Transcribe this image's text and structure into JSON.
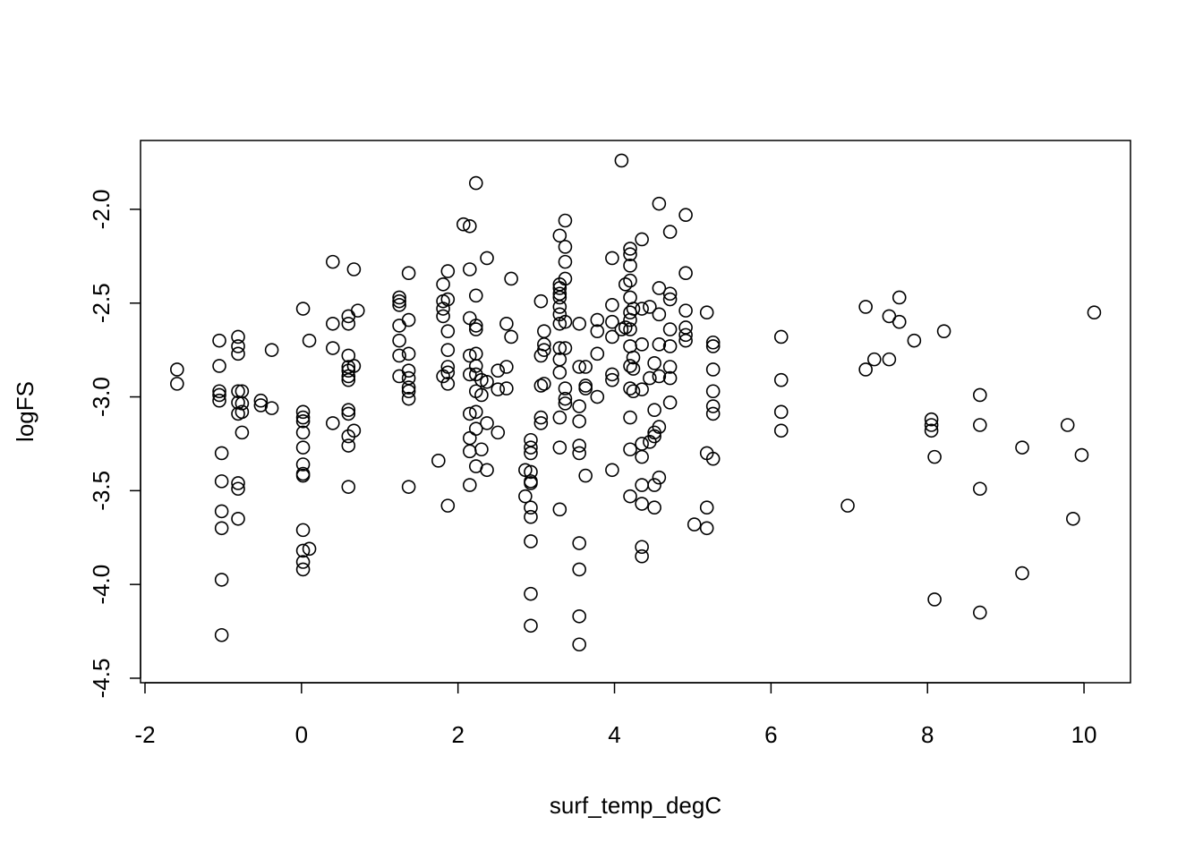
{
  "chart_data": {
    "type": "scatter",
    "x_label": "surf_temp_degC",
    "y_label": "logFS",
    "xlim": [
      -2.057,
      10.594
    ],
    "ylim": [
      -4.524,
      -1.633
    ],
    "xticks": [
      -2,
      0,
      2,
      4,
      6,
      8,
      10
    ],
    "yticks": [
      {
        "value": -2,
        "label": "-2.0"
      },
      -2.5,
      {
        "value": -3,
        "label": "-3.0"
      },
      -3.5,
      {
        "value": -4,
        "label": "-4.0"
      },
      -4.5
    ],
    "color": "#000000",
    "x": [
      -1.59,
      -1.59,
      -1.05,
      -1.05,
      -1.05,
      -1.05,
      -1.05,
      -1.02,
      -1.02,
      -1.02,
      -1.02,
      -1.02,
      -1.02,
      -0.81,
      -0.81,
      -0.81,
      -0.81,
      -0.81,
      -0.81,
      -0.81,
      -0.81,
      -0.81,
      -0.76,
      -0.76,
      -0.76,
      -0.76,
      -0.52,
      -0.52,
      -0.38,
      -0.38,
      0.02,
      0.02,
      0.02,
      0.02,
      0.02,
      0.02,
      0.02,
      0.02,
      0.02,
      0.02,
      0.02,
      0.02,
      0.02,
      0.1,
      0.1,
      0.4,
      0.4,
      0.4,
      0.4,
      0.6,
      0.6,
      0.6,
      0.6,
      0.6,
      0.6,
      0.6,
      0.6,
      0.6,
      0.6,
      0.6,
      0.6,
      0.67,
      0.67,
      0.67,
      0.72,
      1.25,
      1.25,
      1.25,
      1.25,
      1.25,
      1.25,
      1.25,
      1.37,
      1.37,
      1.37,
      1.37,
      1.37,
      1.37,
      1.37,
      1.37,
      1.37,
      1.75,
      1.81,
      1.81,
      1.81,
      1.81,
      1.81,
      1.87,
      1.87,
      1.87,
      1.87,
      1.87,
      1.87,
      1.87,
      1.87,
      2.07,
      2.15,
      2.15,
      2.15,
      2.15,
      2.15,
      2.15,
      2.15,
      2.15,
      2.15,
      2.23,
      2.23,
      2.23,
      2.23,
      2.23,
      2.23,
      2.23,
      2.23,
      2.23,
      2.23,
      2.23,
      2.3,
      2.3,
      2.3,
      2.37,
      2.37,
      2.37,
      2.37,
      2.51,
      2.51,
      2.51,
      2.62,
      2.62,
      2.62,
      2.68,
      2.68,
      2.86,
      2.86,
      2.93,
      2.93,
      2.93,
      2.93,
      2.93,
      2.93,
      2.93,
      2.93,
      2.93,
      2.93,
      2.93,
      3.06,
      3.06,
      3.06,
      3.06,
      3.06,
      3.1,
      3.1,
      3.1,
      3.1,
      3.3,
      3.3,
      3.3,
      3.3,
      3.3,
      3.3,
      3.3,
      3.3,
      3.3,
      3.3,
      3.3,
      3.3,
      3.3,
      3.3,
      3.37,
      3.37,
      3.37,
      3.37,
      3.37,
      3.37,
      3.37,
      3.37,
      3.37,
      3.55,
      3.55,
      3.55,
      3.55,
      3.55,
      3.55,
      3.55,
      3.55,
      3.55,
      3.55,
      3.63,
      3.63,
      3.63,
      3.63,
      3.78,
      3.78,
      3.78,
      3.78,
      3.97,
      3.97,
      3.97,
      3.97,
      3.97,
      3.97,
      3.97,
      4.09,
      4.09,
      4.14,
      4.14,
      4.2,
      4.2,
      4.2,
      4.2,
      4.2,
      4.2,
      4.2,
      4.2,
      4.2,
      4.2,
      4.2,
      4.2,
      4.2,
      4.2,
      4.24,
      4.24,
      4.24,
      4.24,
      4.35,
      4.35,
      4.35,
      4.35,
      4.35,
      4.35,
      4.35,
      4.35,
      4.35,
      4.35,
      4.45,
      4.45,
      4.45,
      4.51,
      4.51,
      4.51,
      4.51,
      4.51,
      4.51,
      4.57,
      4.57,
      4.57,
      4.57,
      4.57,
      4.57,
      4.57,
      4.71,
      4.71,
      4.71,
      4.71,
      4.71,
      4.71,
      4.71,
      4.71,
      4.91,
      4.91,
      4.91,
      4.91,
      4.91,
      4.91,
      5.02,
      5.18,
      5.18,
      5.18,
      5.18,
      5.26,
      5.26,
      5.26,
      5.26,
      5.26,
      5.26,
      5.26,
      6.13,
      6.13,
      6.13,
      6.13,
      6.98,
      7.21,
      7.21,
      7.32,
      7.51,
      7.51,
      7.64,
      7.64,
      7.83,
      8.05,
      8.05,
      8.05,
      8.09,
      8.09,
      8.21,
      8.67,
      8.67,
      8.67,
      8.67,
      9.21,
      9.21,
      9.79,
      9.86,
      9.97,
      10.13
    ],
    "values": [
      -2.854,
      -2.93,
      -2.7,
      -2.835,
      -2.97,
      -2.99,
      -3.02,
      -3.3,
      -3.45,
      -3.61,
      -3.7,
      -3.975,
      -4.27,
      -2.68,
      -2.73,
      -2.77,
      -2.97,
      -3.03,
      -3.09,
      -3.46,
      -3.49,
      -3.65,
      -2.97,
      -3.035,
      -3.08,
      -3.19,
      -3.02,
      -3.045,
      -2.75,
      -3.06,
      -2.53,
      -3.08,
      -3.11,
      -3.13,
      -3.19,
      -3.27,
      -3.36,
      -3.41,
      -3.42,
      -3.71,
      -3.82,
      -3.88,
      -3.92,
      -2.7,
      -3.81,
      -2.28,
      -2.61,
      -2.74,
      -3.14,
      -2.57,
      -2.61,
      -2.78,
      -2.84,
      -2.86,
      -2.89,
      -2.91,
      -3.07,
      -3.09,
      -3.21,
      -3.26,
      -3.48,
      -2.32,
      -2.835,
      -3.18,
      -2.54,
      -2.47,
      -2.49,
      -2.51,
      -2.62,
      -2.7,
      -2.78,
      -2.89,
      -2.34,
      -2.59,
      -2.77,
      -2.86,
      -2.9,
      -2.95,
      -2.97,
      -3.01,
      -3.48,
      -3.34,
      -2.4,
      -2.49,
      -2.53,
      -2.57,
      -2.89,
      -2.33,
      -2.48,
      -2.65,
      -2.75,
      -2.84,
      -2.87,
      -2.93,
      -3.58,
      -2.08,
      -2.09,
      -2.32,
      -2.58,
      -2.78,
      -2.88,
      -3.09,
      -3.22,
      -3.29,
      -3.47,
      -1.86,
      -2.46,
      -2.62,
      -2.64,
      -2.77,
      -2.835,
      -2.88,
      -2.97,
      -3.08,
      -3.17,
      -3.37,
      -2.91,
      -2.99,
      -3.28,
      -2.26,
      -2.92,
      -3.14,
      -3.39,
      -2.86,
      -2.96,
      -3.19,
      -2.61,
      -2.84,
      -2.955,
      -2.37,
      -2.68,
      -3.39,
      -3.53,
      -3.23,
      -3.27,
      -3.3,
      -3.4,
      -3.45,
      -3.46,
      -3.59,
      -3.64,
      -3.77,
      -4.05,
      -4.22,
      -2.49,
      -2.78,
      -2.94,
      -3.11,
      -3.14,
      -2.65,
      -2.72,
      -2.75,
      -2.93,
      -2.14,
      -2.4,
      -2.42,
      -2.45,
      -2.47,
      -2.52,
      -2.56,
      -2.61,
      -2.74,
      -2.8,
      -2.87,
      -3.11,
      -3.27,
      -3.6,
      -2.06,
      -2.2,
      -2.28,
      -2.37,
      -2.6,
      -2.74,
      -2.955,
      -3.01,
      -3.035,
      -2.61,
      -2.84,
      -3.05,
      -3.13,
      -3.26,
      -3.3,
      -3.78,
      -3.92,
      -4.17,
      -4.32,
      -2.84,
      -2.94,
      -2.955,
      -3.42,
      -2.59,
      -2.65,
      -2.77,
      -3.0,
      -2.26,
      -2.51,
      -2.6,
      -2.68,
      -2.88,
      -2.91,
      -3.39,
      -1.74,
      -2.64,
      -2.4,
      -2.63,
      -2.21,
      -2.24,
      -2.3,
      -2.38,
      -2.47,
      -2.55,
      -2.59,
      -2.64,
      -2.73,
      -2.835,
      -2.955,
      -3.11,
      -3.28,
      -3.53,
      -2.53,
      -2.79,
      -2.85,
      -2.97,
      -2.16,
      -2.53,
      -2.72,
      -2.96,
      -3.25,
      -3.32,
      -3.47,
      -3.57,
      -3.8,
      -3.85,
      -2.52,
      -2.9,
      -3.24,
      -2.82,
      -3.07,
      -3.19,
      -3.21,
      -3.47,
      -3.59,
      -1.97,
      -2.42,
      -2.56,
      -2.72,
      -2.89,
      -3.16,
      -3.43,
      -2.12,
      -2.45,
      -2.48,
      -2.64,
      -2.73,
      -2.84,
      -2.9,
      -3.03,
      -2.03,
      -2.34,
      -2.54,
      -2.63,
      -2.67,
      -2.7,
      -3.68,
      -2.55,
      -3.3,
      -3.59,
      -3.7,
      -2.71,
      -2.73,
      -2.854,
      -2.97,
      -3.05,
      -3.09,
      -3.33,
      -2.68,
      -2.91,
      -3.08,
      -3.18,
      -3.58,
      -2.52,
      -2.854,
      -2.8,
      -2.57,
      -2.8,
      -2.47,
      -2.6,
      -2.7,
      -3.12,
      -3.15,
      -3.18,
      -3.32,
      -4.08,
      -2.65,
      -2.99,
      -3.15,
      -3.49,
      -4.15,
      -3.27,
      -3.94,
      -3.15,
      -3.65,
      -3.31,
      -2.55
    ]
  }
}
